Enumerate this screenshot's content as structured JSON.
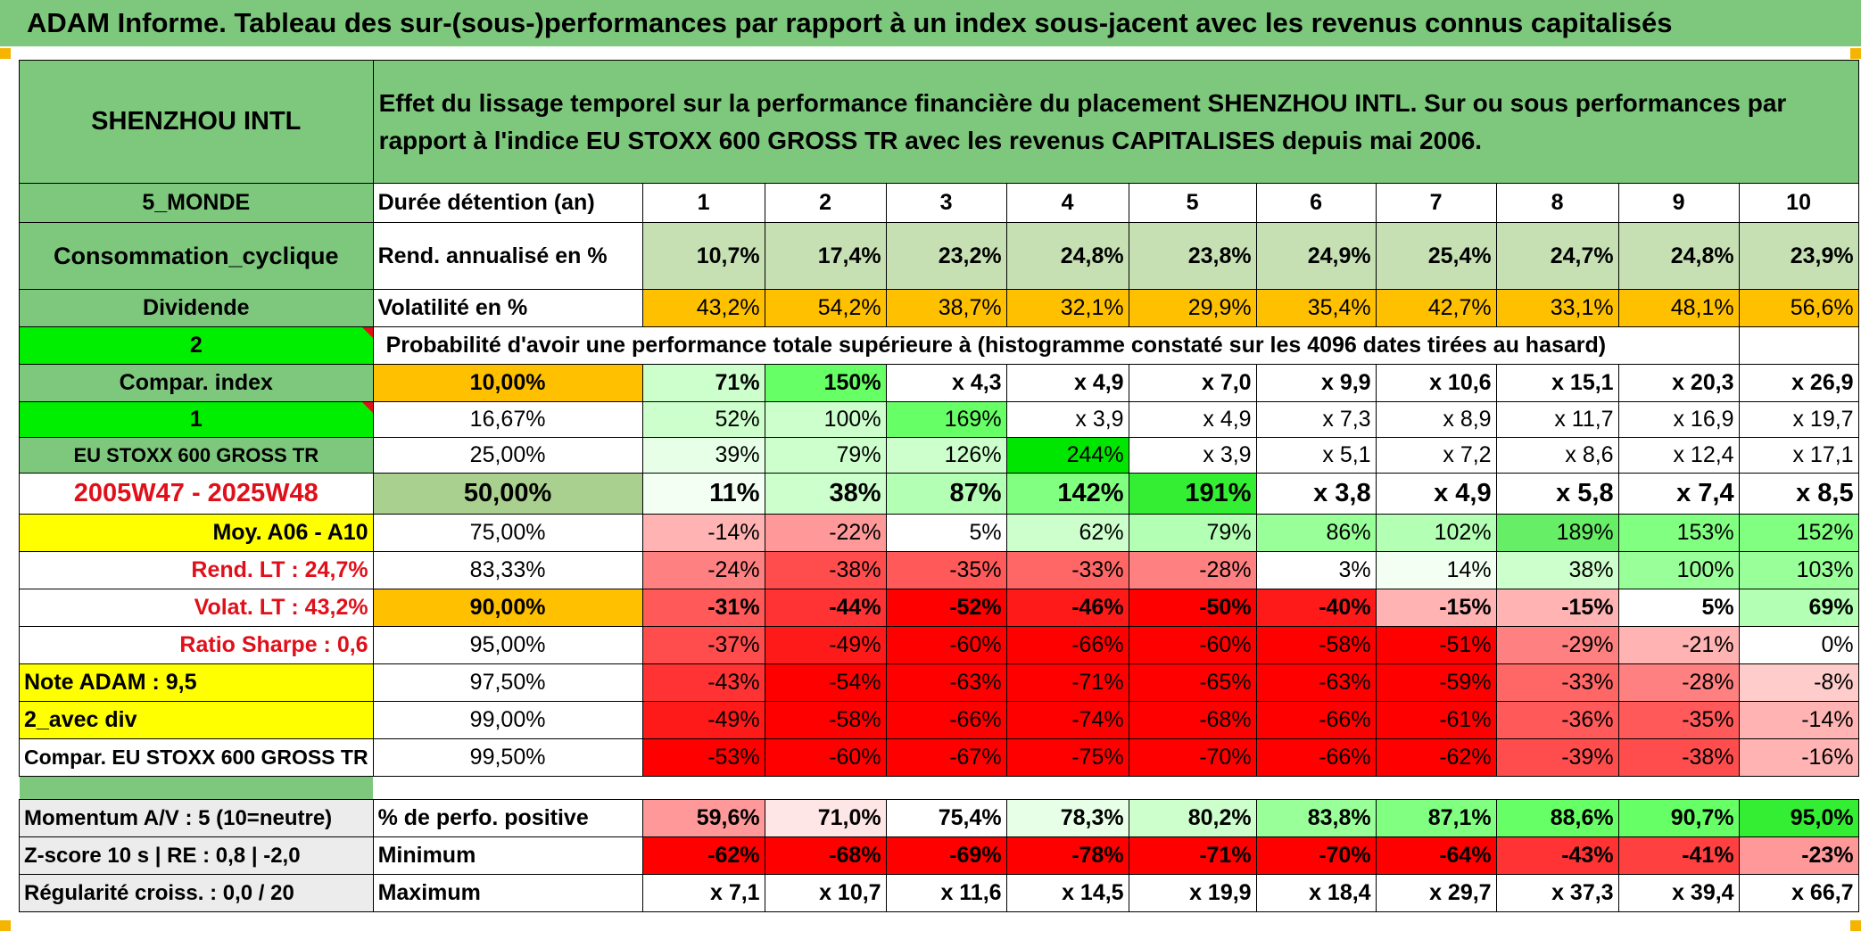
{
  "title": "ADAM Informe. Tableau des sur-(sous-)performances par rapport à un index sous-jacent avec les revenus connus capitalisés",
  "sidebar": {
    "company": "SHENZHOU INTL",
    "region": "5_MONDE",
    "sector": "Consommation_cyclique",
    "dividend": "Dividende",
    "mode_value": "2",
    "compar_index_label": "Compar. index",
    "index_value": "1",
    "index_name": "EU STOXX 600 GROSS TR",
    "period": "2005W47 - 2025W48",
    "moy": "Moy. A06 - A10",
    "rend_lt": "Rend. LT :   24,7%",
    "volat_lt": "Volat. LT :   43,2%",
    "sharpe": "Ratio Sharpe :   0,6",
    "note": "Note ADAM : 9,5",
    "avec_div": "2_avec div",
    "compar": "Compar. EU STOXX 600 GROSS TR",
    "momentum": "Momentum A/V : 5 (10=neutre)",
    "zscore": "Z-score 10 s | RE : 0,8 | -2,0",
    "regularite": "Régularité croiss. : 0,0 / 20"
  },
  "description": "Effet du lissage temporel sur la performance financière du placement SHENZHOU INTL. Sur ou sous performances par rapport à l'indice EU STOXX 600 GROSS TR avec les revenus CAPITALISES depuis mai 2006.",
  "header": {
    "label": "Durée détention (an)",
    "years": [
      "1",
      "2",
      "3",
      "4",
      "5",
      "6",
      "7",
      "8",
      "9",
      "10"
    ]
  },
  "rendement": {
    "label": "Rend. annualisé en %",
    "values": [
      "10,7%",
      "17,4%",
      "23,2%",
      "24,8%",
      "23,8%",
      "24,9%",
      "25,4%",
      "24,7%",
      "24,8%",
      "23,9%"
    ]
  },
  "volatilite": {
    "label": "Volatilité en %",
    "values": [
      "43,2%",
      "54,2%",
      "38,7%",
      "32,1%",
      "29,9%",
      "35,4%",
      "42,7%",
      "33,1%",
      "48,1%",
      "56,6%"
    ]
  },
  "probability_caption": "Probabilité d'avoir une performance totale supérieure à (histogramme constaté sur les 4096 dates tirées au hasard)",
  "quantiles": [
    {
      "pct": "10,00%",
      "values": [
        "71%",
        "150%",
        "x 4,3",
        "x 4,9",
        "x 7,0",
        "x 9,9",
        "x 10,6",
        "x 15,1",
        "x 20,3",
        "x 26,9"
      ],
      "colors": [
        "#ccffcc",
        "#66ff66",
        "#ffffff",
        "#ffffff",
        "#ffffff",
        "#ffffff",
        "#ffffff",
        "#ffffff",
        "#ffffff",
        "#ffffff"
      ]
    },
    {
      "pct": "16,67%",
      "values": [
        "52%",
        "100%",
        "169%",
        "x 3,9",
        "x 4,9",
        "x 7,3",
        "x 8,9",
        "x 11,7",
        "x 16,9",
        "x 19,7"
      ],
      "colors": [
        "#ccffcc",
        "#ccffcc",
        "#66ff66",
        "#ffffff",
        "#ffffff",
        "#ffffff",
        "#ffffff",
        "#ffffff",
        "#ffffff",
        "#ffffff"
      ]
    },
    {
      "pct": "25,00%",
      "values": [
        "39%",
        "79%",
        "126%",
        "244%",
        "x 3,9",
        "x 5,1",
        "x 7,2",
        "x 8,6",
        "x 12,4",
        "x 17,1"
      ],
      "colors": [
        "#e6ffe6",
        "#ccffcc",
        "#ccffcc",
        "#00e600",
        "#ffffff",
        "#ffffff",
        "#ffffff",
        "#ffffff",
        "#ffffff",
        "#ffffff"
      ]
    },
    {
      "pct": "50,00%",
      "values": [
        "11%",
        "38%",
        "87%",
        "142%",
        "191%",
        "x 3,8",
        "x 4,9",
        "x 5,8",
        "x 7,4",
        "x 8,5"
      ],
      "colors": [
        "#f2fff2",
        "#ccffcc",
        "#b3ffb3",
        "#80ff80",
        "#33ee33",
        "#ffffff",
        "#ffffff",
        "#ffffff",
        "#ffffff",
        "#ffffff"
      ]
    },
    {
      "pct": "75,00%",
      "values": [
        "-14%",
        "-22%",
        "5%",
        "62%",
        "79%",
        "86%",
        "102%",
        "189%",
        "153%",
        "152%"
      ],
      "colors": [
        "#ffb3b3",
        "#ff9999",
        "#ffffff",
        "#ccffcc",
        "#b3ffb3",
        "#99ff99",
        "#b3ffb3",
        "#66ee66",
        "#80ff80",
        "#80ff80"
      ]
    },
    {
      "pct": "83,33%",
      "values": [
        "-24%",
        "-38%",
        "-35%",
        "-33%",
        "-28%",
        "3%",
        "14%",
        "38%",
        "100%",
        "103%"
      ],
      "colors": [
        "#ff8080",
        "#ff4d4d",
        "#ff5959",
        "#ff6666",
        "#ff8080",
        "#ffffff",
        "#f2fff2",
        "#ccffcc",
        "#99ff99",
        "#99ff99"
      ]
    },
    {
      "pct": "90,00%",
      "values": [
        "-31%",
        "-44%",
        "-52%",
        "-46%",
        "-50%",
        "-40%",
        "-15%",
        "-15%",
        "5%",
        "69%"
      ],
      "colors": [
        "#ff5959",
        "#ff3333",
        "#ff0000",
        "#ff1a1a",
        "#ff0000",
        "#ff1a1a",
        "#ffb3b3",
        "#ffb3b3",
        "#ffffff",
        "#b3ffb3"
      ]
    },
    {
      "pct": "95,00%",
      "values": [
        "-37%",
        "-49%",
        "-60%",
        "-66%",
        "-60%",
        "-58%",
        "-51%",
        "-29%",
        "-21%",
        "0%"
      ],
      "colors": [
        "#ff4d4d",
        "#ff1a1a",
        "#ff0000",
        "#ff0000",
        "#ff0000",
        "#ff0000",
        "#ff0000",
        "#ff8080",
        "#ffb3b3",
        "#ffffff"
      ]
    },
    {
      "pct": "97,50%",
      "values": [
        "-43%",
        "-54%",
        "-63%",
        "-71%",
        "-65%",
        "-63%",
        "-59%",
        "-33%",
        "-28%",
        "-8%"
      ],
      "colors": [
        "#ff3333",
        "#ff0000",
        "#ff0000",
        "#ff0000",
        "#ff0000",
        "#ff0000",
        "#ff0000",
        "#ff6666",
        "#ff8080",
        "#ffcccc"
      ]
    },
    {
      "pct": "99,00%",
      "values": [
        "-49%",
        "-58%",
        "-66%",
        "-74%",
        "-68%",
        "-66%",
        "-61%",
        "-36%",
        "-35%",
        "-14%"
      ],
      "colors": [
        "#ff1a1a",
        "#ff0000",
        "#ff0000",
        "#ff0000",
        "#ff0000",
        "#ff0000",
        "#ff0000",
        "#ff5959",
        "#ff5959",
        "#ffb3b3"
      ]
    },
    {
      "pct": "99,50%",
      "values": [
        "-53%",
        "-60%",
        "-67%",
        "-75%",
        "-70%",
        "-66%",
        "-62%",
        "-39%",
        "-38%",
        "-16%"
      ],
      "colors": [
        "#ff0000",
        "#ff0000",
        "#ff0000",
        "#ff0000",
        "#ff0000",
        "#ff0000",
        "#ff0000",
        "#ff4d4d",
        "#ff4d4d",
        "#ffb3b3"
      ]
    }
  ],
  "positive": {
    "label": "% de perfo. positive",
    "values": [
      "59,6%",
      "71,0%",
      "75,4%",
      "78,3%",
      "80,2%",
      "83,8%",
      "87,1%",
      "88,6%",
      "90,7%",
      "95,0%"
    ],
    "colors": [
      "#ff9999",
      "#ffe6e6",
      "#ffffff",
      "#e6ffe6",
      "#ccffcc",
      "#99ff99",
      "#80ff80",
      "#66ff66",
      "#66ff66",
      "#33ee33"
    ]
  },
  "minimum": {
    "label": "Minimum",
    "values": [
      "-62%",
      "-68%",
      "-69%",
      "-78%",
      "-71%",
      "-70%",
      "-64%",
      "-43%",
      "-41%",
      "-23%"
    ],
    "colors": [
      "#ff0000",
      "#ff0000",
      "#ff0000",
      "#ff0000",
      "#ff0000",
      "#ff0000",
      "#ff0000",
      "#ff3333",
      "#ff4040",
      "#ff9999"
    ]
  },
  "maximum": {
    "label": "Maximum",
    "values": [
      "x 7,1",
      "x 10,7",
      "x 11,6",
      "x 14,5",
      "x 19,9",
      "x 18,4",
      "x 29,7",
      "x 37,3",
      "x 39,4",
      "x 66,7"
    ]
  },
  "colors": {
    "header_green": "#7dc87d",
    "rend_green": "#c6e0b4",
    "volat_orange": "#ffc000",
    "bright_green": "#00ee00",
    "yellow": "#ffff00",
    "period_red": "#e0101a"
  }
}
